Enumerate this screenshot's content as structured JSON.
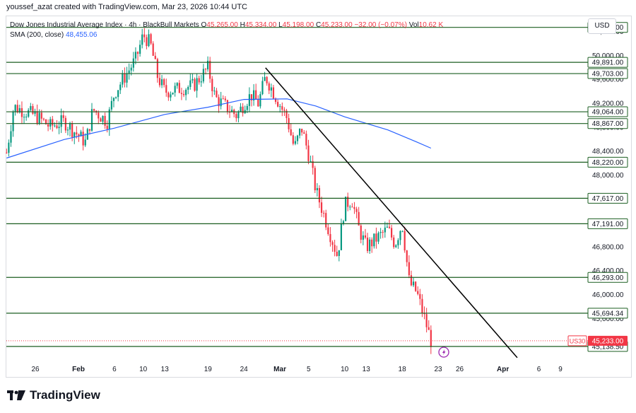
{
  "watermark": "youssef_azat created with TradingView.com, Mar 23, 2026 10:44 UTC",
  "header": {
    "symbol": "Dow Jones Industrial Average Index · 4h · BlackBull Markets",
    "o_label": "O",
    "o_value": "45,265.00",
    "h_label": "H",
    "h_value": "45,334.00",
    "l_label": "L",
    "l_value": "45,198.00",
    "c_label": "C",
    "c_value": "45,233.00",
    "change": "−32.00 (−0.07%)",
    "vol_label": "Vol",
    "vol_value": "10.62 K"
  },
  "sma_label": {
    "name": "SMA (200, close)",
    "value": "48,455.06"
  },
  "currency_button": "USD",
  "ticker_tag": "US30",
  "logo_text": "TradingView",
  "colors": {
    "up": "#089981",
    "down": "#f23645",
    "sma": "#2962ff",
    "level": "#1b5e20",
    "trend": "#000000",
    "price_line": "#f23645"
  },
  "chart_data": {
    "type": "candlestick",
    "ylim": [
      44900,
      50650
    ],
    "y_ticks": [
      "50,400.00",
      "50,000.00",
      "49,600.00",
      "49,200.00",
      "48,800.00",
      "48,400.00",
      "48,000.00",
      "47,600.00",
      "47,200.00",
      "46,800.00",
      "46,400.00",
      "46,000.00",
      "45,600.00"
    ],
    "x_ticks": [
      "26",
      "Feb",
      "6",
      "10",
      "13",
      "19",
      "24",
      "Mar",
      "5",
      "10",
      "13",
      "18",
      "23",
      "26",
      "Apr",
      "6",
      "9"
    ],
    "horizontal_levels": [
      "50,476.00",
      "49,891.00",
      "49,703.00",
      "49,064.00",
      "48,867.00",
      "48,220.00",
      "47,617.00",
      "47,191.00",
      "46,293.00",
      "45,694.34",
      "45,138.50"
    ],
    "current_price": "45,233.00",
    "trendline": {
      "from": {
        "date": "Feb 27",
        "price": 49800
      },
      "to": {
        "date": "Apr 3",
        "price": 44950
      }
    },
    "sma_points": [
      {
        "date": "Jan 22",
        "value": 48290
      },
      {
        "date": "Jan 30",
        "value": 48600
      },
      {
        "date": "Feb 6",
        "value": 48790
      },
      {
        "date": "Feb 13",
        "value": 49020
      },
      {
        "date": "Feb 19",
        "value": 49140
      },
      {
        "date": "Feb 24",
        "value": 49270
      },
      {
        "date": "Mar 2",
        "value": 49280
      },
      {
        "date": "Mar 6",
        "value": 49160
      },
      {
        "date": "Mar 10",
        "value": 48980
      },
      {
        "date": "Mar 16",
        "value": 48760
      },
      {
        "date": "Mar 20",
        "value": 48560
      },
      {
        "date": "Mar 22",
        "value": 48455
      }
    ],
    "price_path": [
      {
        "date": "Jan 22",
        "price": 48380
      },
      {
        "date": "Jan 23",
        "price": 49150
      },
      {
        "date": "Jan 26",
        "price": 49000
      },
      {
        "date": "Jan 28",
        "price": 48820
      },
      {
        "date": "Jan 30",
        "price": 48900
      },
      {
        "date": "Feb 2",
        "price": 48550
      },
      {
        "date": "Feb 3",
        "price": 49100
      },
      {
        "date": "Feb 5",
        "price": 48900
      },
      {
        "date": "Feb 6",
        "price": 49380
      },
      {
        "date": "Feb 9",
        "price": 49950
      },
      {
        "date": "Feb 10",
        "price": 50350
      },
      {
        "date": "Feb 11",
        "price": 50200
      },
      {
        "date": "Feb 12",
        "price": 49650
      },
      {
        "date": "Feb 13",
        "price": 49400
      },
      {
        "date": "Feb 17",
        "price": 49500
      },
      {
        "date": "Feb 19",
        "price": 49800
      },
      {
        "date": "Feb 20",
        "price": 49300
      },
      {
        "date": "Feb 23",
        "price": 49000
      },
      {
        "date": "Feb 24",
        "price": 49200
      },
      {
        "date": "Feb 25",
        "price": 49350
      },
      {
        "date": "Feb 26",
        "price": 49200
      },
      {
        "date": "Feb 27",
        "price": 49650
      },
      {
        "date": "Mar 2",
        "price": 48950
      },
      {
        "date": "Mar 3",
        "price": 48450
      },
      {
        "date": "Mar 4",
        "price": 48800
      },
      {
        "date": "Mar 5",
        "price": 48350
      },
      {
        "date": "Mar 6",
        "price": 47750
      },
      {
        "date": "Mar 9",
        "price": 46650
      },
      {
        "date": "Mar 10",
        "price": 47500
      },
      {
        "date": "Mar 11",
        "price": 47600
      },
      {
        "date": "Mar 12",
        "price": 47100
      },
      {
        "date": "Mar 13",
        "price": 46800
      },
      {
        "date": "Mar 16",
        "price": 47100
      },
      {
        "date": "Mar 17",
        "price": 46850
      },
      {
        "date": "Mar 18",
        "price": 47200
      },
      {
        "date": "Mar 19",
        "price": 46200
      },
      {
        "date": "Mar 20",
        "price": 46050
      },
      {
        "date": "Mar 21",
        "price": 45650
      },
      {
        "date": "Mar 22",
        "price": 45233
      }
    ]
  }
}
